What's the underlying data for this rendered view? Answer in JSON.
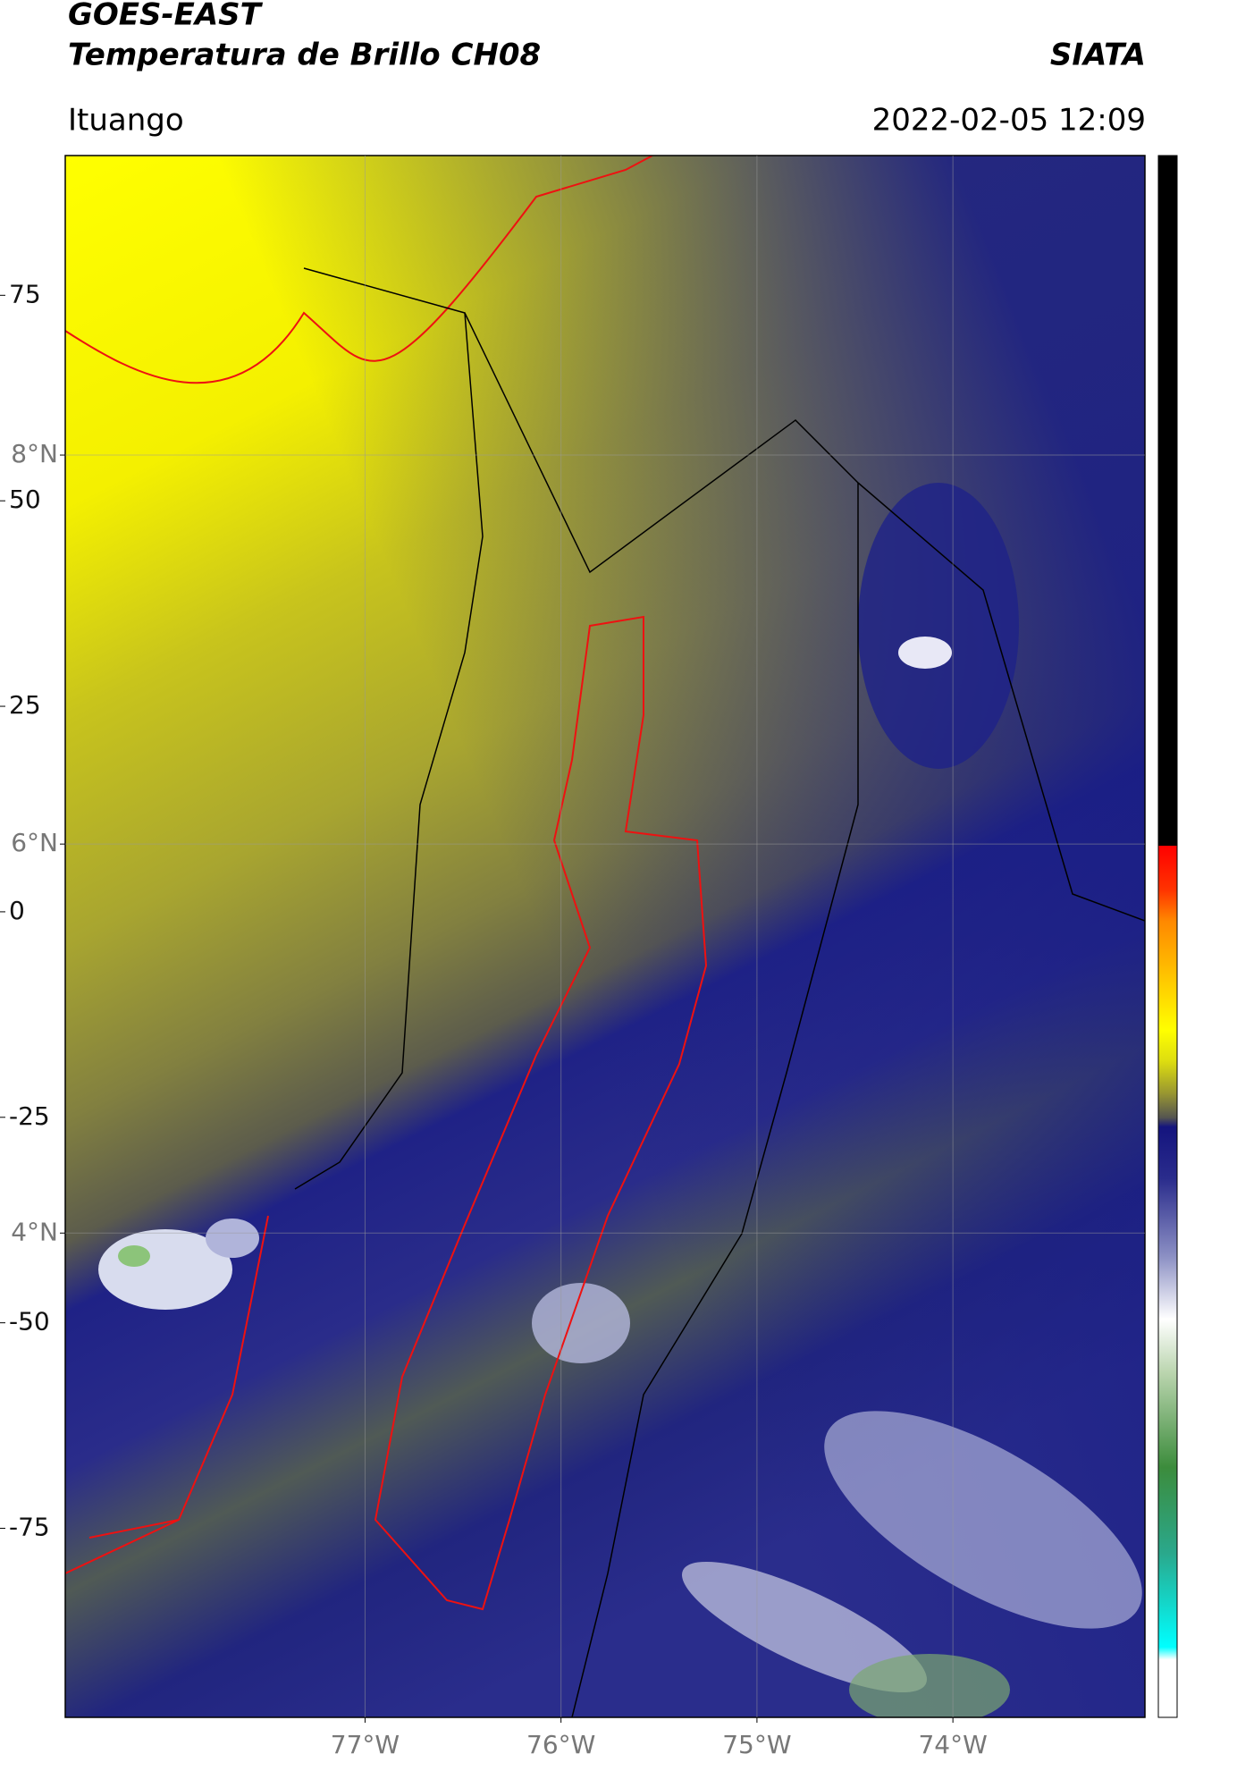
{
  "chart_data": {
    "type": "map",
    "title": "GOES-EAST",
    "subtitle": "Temperatura de Brillo CH08",
    "source": "SIATA",
    "location": "Ituango",
    "datetime": "2022-02-05 12:09",
    "xlim": [
      -78.53,
      -73.02
    ],
    "ylim": [
      1.51,
      9.54
    ],
    "xticks": [
      {
        "value": -77,
        "label": "77°W"
      },
      {
        "value": -76,
        "label": "76°W"
      },
      {
        "value": -75,
        "label": "75°W"
      },
      {
        "value": -74,
        "label": "74°W"
      }
    ],
    "yticks": [
      {
        "value": 4,
        "label": "4°N"
      },
      {
        "value": 6,
        "label": "6°N"
      },
      {
        "value": 8,
        "label": "8°N"
      }
    ],
    "grid": true,
    "clim": [
      -98,
      92
    ],
    "cticks": [
      -75,
      -50,
      -25,
      0,
      25,
      50,
      75
    ]
  }
}
